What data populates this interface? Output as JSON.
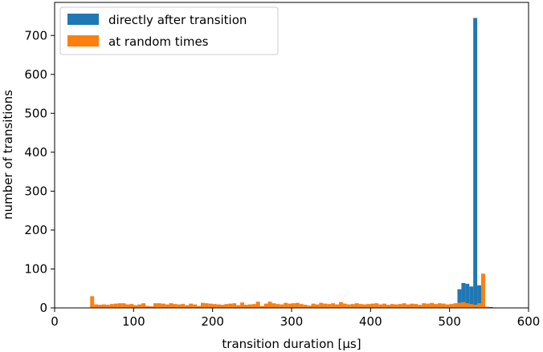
{
  "chart_data": {
    "type": "bar",
    "title": "",
    "xlabel": "transition duration [µs]",
    "ylabel": "number of transitions",
    "xlim": [
      0,
      600
    ],
    "ylim": [
      0,
      785
    ],
    "xticks": [
      0,
      100,
      200,
      300,
      400,
      500,
      600
    ],
    "yticks": [
      0,
      100,
      200,
      300,
      400,
      500,
      600,
      700
    ],
    "grid": false,
    "legend_position": "top-left",
    "bin_width": 5,
    "series": [
      {
        "name": "directly after transition",
        "color": "#1f77b4",
        "bins": [
          {
            "x": 510,
            "y": 48
          },
          {
            "x": 515,
            "y": 64
          },
          {
            "x": 520,
            "y": 62
          },
          {
            "x": 525,
            "y": 55
          },
          {
            "x": 530,
            "y": 745
          },
          {
            "x": 535,
            "y": 58
          },
          {
            "x": 540,
            "y": 5
          },
          {
            "x": 545,
            "y": 3
          },
          {
            "x": 550,
            "y": 2
          }
        ]
      },
      {
        "name": "at random times",
        "color": "#ff7f0e",
        "bins": [
          {
            "x": 45,
            "y": 30
          },
          {
            "x": 50,
            "y": 9
          },
          {
            "x": 55,
            "y": 8
          },
          {
            "x": 60,
            "y": 9
          },
          {
            "x": 65,
            "y": 8
          },
          {
            "x": 70,
            "y": 10
          },
          {
            "x": 75,
            "y": 11
          },
          {
            "x": 80,
            "y": 12
          },
          {
            "x": 85,
            "y": 12
          },
          {
            "x": 90,
            "y": 9
          },
          {
            "x": 95,
            "y": 10
          },
          {
            "x": 100,
            "y": 7
          },
          {
            "x": 105,
            "y": 9
          },
          {
            "x": 110,
            "y": 12
          },
          {
            "x": 115,
            "y": 5
          },
          {
            "x": 120,
            "y": 4
          },
          {
            "x": 125,
            "y": 12
          },
          {
            "x": 130,
            "y": 12
          },
          {
            "x": 135,
            "y": 11
          },
          {
            "x": 140,
            "y": 9
          },
          {
            "x": 145,
            "y": 12
          },
          {
            "x": 150,
            "y": 10
          },
          {
            "x": 155,
            "y": 9
          },
          {
            "x": 160,
            "y": 10
          },
          {
            "x": 165,
            "y": 7
          },
          {
            "x": 170,
            "y": 11
          },
          {
            "x": 175,
            "y": 9
          },
          {
            "x": 180,
            "y": 5
          },
          {
            "x": 185,
            "y": 13
          },
          {
            "x": 190,
            "y": 12
          },
          {
            "x": 195,
            "y": 11
          },
          {
            "x": 200,
            "y": 10
          },
          {
            "x": 205,
            "y": 9
          },
          {
            "x": 210,
            "y": 8
          },
          {
            "x": 215,
            "y": 10
          },
          {
            "x": 220,
            "y": 11
          },
          {
            "x": 225,
            "y": 12
          },
          {
            "x": 230,
            "y": 7
          },
          {
            "x": 235,
            "y": 14
          },
          {
            "x": 240,
            "y": 8
          },
          {
            "x": 245,
            "y": 9
          },
          {
            "x": 250,
            "y": 10
          },
          {
            "x": 255,
            "y": 16
          },
          {
            "x": 260,
            "y": 5
          },
          {
            "x": 265,
            "y": 11
          },
          {
            "x": 270,
            "y": 16
          },
          {
            "x": 275,
            "y": 12
          },
          {
            "x": 280,
            "y": 10
          },
          {
            "x": 285,
            "y": 9
          },
          {
            "x": 290,
            "y": 13
          },
          {
            "x": 295,
            "y": 11
          },
          {
            "x": 300,
            "y": 12
          },
          {
            "x": 305,
            "y": 13
          },
          {
            "x": 310,
            "y": 10
          },
          {
            "x": 315,
            "y": 8
          },
          {
            "x": 320,
            "y": 6
          },
          {
            "x": 325,
            "y": 11
          },
          {
            "x": 330,
            "y": 9
          },
          {
            "x": 335,
            "y": 13
          },
          {
            "x": 340,
            "y": 11
          },
          {
            "x": 345,
            "y": 10
          },
          {
            "x": 350,
            "y": 12
          },
          {
            "x": 355,
            "y": 9
          },
          {
            "x": 360,
            "y": 15
          },
          {
            "x": 365,
            "y": 11
          },
          {
            "x": 370,
            "y": 9
          },
          {
            "x": 375,
            "y": 10
          },
          {
            "x": 380,
            "y": 12
          },
          {
            "x": 385,
            "y": 10
          },
          {
            "x": 390,
            "y": 9
          },
          {
            "x": 395,
            "y": 10
          },
          {
            "x": 400,
            "y": 11
          },
          {
            "x": 405,
            "y": 12
          },
          {
            "x": 410,
            "y": 9
          },
          {
            "x": 415,
            "y": 11
          },
          {
            "x": 420,
            "y": 8
          },
          {
            "x": 425,
            "y": 10
          },
          {
            "x": 430,
            "y": 9
          },
          {
            "x": 435,
            "y": 10
          },
          {
            "x": 440,
            "y": 12
          },
          {
            "x": 445,
            "y": 9
          },
          {
            "x": 450,
            "y": 11
          },
          {
            "x": 455,
            "y": 10
          },
          {
            "x": 460,
            "y": 8
          },
          {
            "x": 465,
            "y": 12
          },
          {
            "x": 470,
            "y": 11
          },
          {
            "x": 475,
            "y": 13
          },
          {
            "x": 480,
            "y": 10
          },
          {
            "x": 485,
            "y": 12
          },
          {
            "x": 490,
            "y": 11
          },
          {
            "x": 495,
            "y": 9
          },
          {
            "x": 500,
            "y": 10
          },
          {
            "x": 505,
            "y": 12
          },
          {
            "x": 510,
            "y": 13
          },
          {
            "x": 515,
            "y": 15
          },
          {
            "x": 520,
            "y": 12
          },
          {
            "x": 525,
            "y": 10
          },
          {
            "x": 530,
            "y": 8
          },
          {
            "x": 535,
            "y": 12
          },
          {
            "x": 540,
            "y": 88
          },
          {
            "x": 545,
            "y": 3
          }
        ]
      }
    ]
  }
}
